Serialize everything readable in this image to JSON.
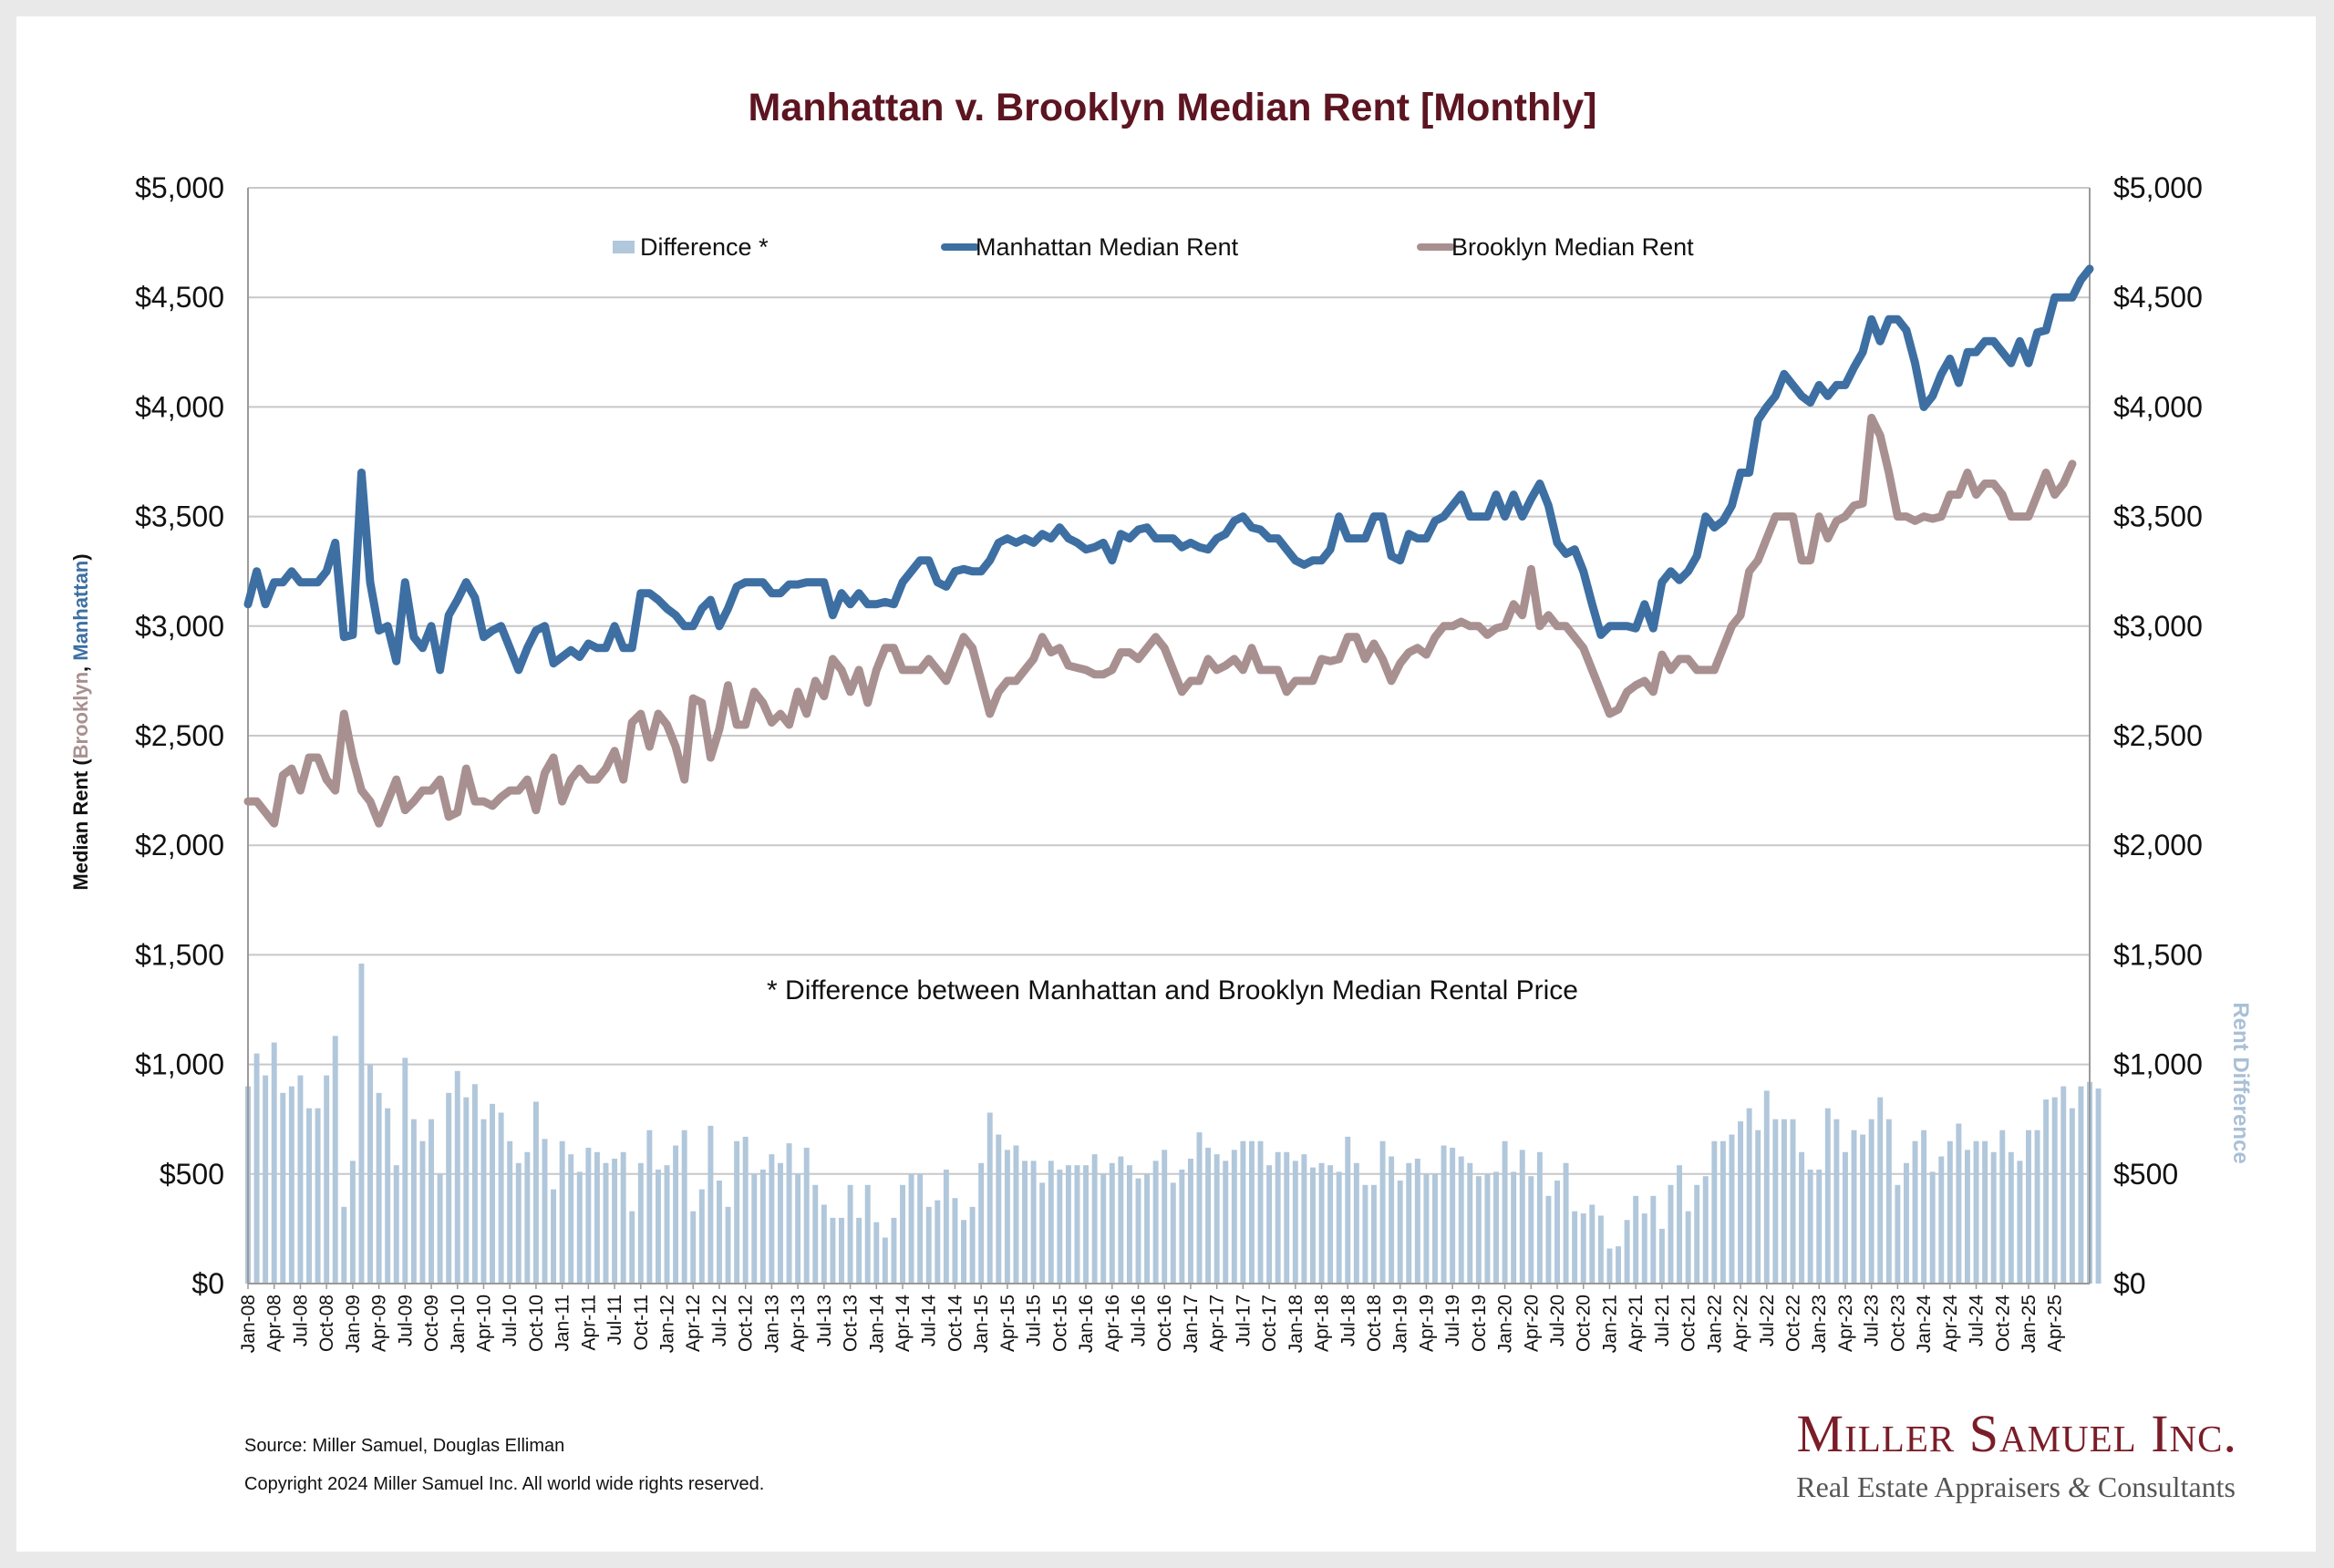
{
  "chart_data": {
    "type": "line",
    "title": "Manhattan v. Brooklyn Median Rent [Monthly]",
    "ylabel_left": {
      "prefix": "Median Rent (",
      "part1": "Brooklyn",
      "separator": ", ",
      "part2": "Manhattan",
      "suffix": ")"
    },
    "ylabel_right": "Rent Difference",
    "ylim": [
      0,
      5000
    ],
    "yticks": [
      "$0",
      "$500",
      "$1,000",
      "$1,500",
      "$2,000",
      "$2,500",
      "$3,000",
      "$3,500",
      "$4,000",
      "$4,500",
      "$5,000"
    ],
    "grid": true,
    "legend": {
      "position": "top",
      "entries": [
        "Difference *",
        "Manhattan Median Rent",
        "Brooklyn Median Rent"
      ]
    },
    "annotation": "* Difference between Manhattan and Brooklyn Median Rental Price",
    "x_range": [
      "Jan-08",
      "Jul-25"
    ],
    "x_tick_labels": [
      "Jan-08",
      "Apr-08",
      "Jul-08",
      "Oct-08",
      "Jan-09",
      "Apr-09",
      "Jul-09",
      "Oct-09",
      "Jan-10",
      "Apr-10",
      "Jul-10",
      "Oct-10",
      "Jan-11",
      "Apr-11",
      "Jul-11",
      "Oct-11",
      "Jan-12",
      "Apr-12",
      "Jul-12",
      "Oct-12",
      "Jan-13",
      "Apr-13",
      "Jul-13",
      "Oct-13",
      "Jan-14",
      "Apr-14",
      "Jul-14",
      "Oct-14",
      "Jan-15",
      "Apr-15",
      "Jul-15",
      "Oct-15",
      "Jan-16",
      "Apr-16",
      "Jul-16",
      "Oct-16",
      "Jan-17",
      "Apr-17",
      "Jul-17",
      "Oct-17",
      "Jan-18",
      "Apr-18",
      "Jul-18",
      "Oct-18",
      "Jan-19",
      "Apr-19",
      "Jul-19",
      "Oct-19",
      "Jan-20",
      "Apr-20",
      "Jul-20",
      "Oct-20",
      "Jan-21",
      "Apr-21",
      "Jul-21",
      "Oct-21",
      "Jan-22",
      "Apr-22",
      "Jul-22",
      "Oct-22",
      "Jan-23",
      "Apr-23",
      "Jul-23",
      "Oct-23",
      "Jan-24",
      "Apr-24",
      "Jul-24",
      "Oct-24",
      "Jan-25",
      "Apr-25"
    ],
    "colors": {
      "manhattan": "#3d6fa3",
      "brooklyn": "#a89091",
      "difference": "#b1c7db",
      "title": "#5c1521",
      "grid": "#c8c8c8",
      "rent_difference_label": "#a9c0d6"
    },
    "series": [
      {
        "name": "Manhattan Median Rent",
        "type": "line",
        "values": [
          3100,
          3250,
          3100,
          3200,
          3200,
          3250,
          3200,
          3200,
          3200,
          3250,
          3380,
          2950,
          2960,
          3700,
          3200,
          2980,
          3000,
          2840,
          3200,
          2950,
          2900,
          3000,
          2800,
          3050,
          3120,
          3200,
          3130,
          2950,
          2980,
          3000,
          2900,
          2800,
          2900,
          2980,
          3000,
          2830,
          2860,
          2890,
          2860,
          2920,
          2900,
          2900,
          3000,
          2900,
          2900,
          3150,
          3150,
          3120,
          3080,
          3050,
          3000,
          3000,
          3080,
          3120,
          3000,
          3080,
          3180,
          3200,
          3200,
          3200,
          3150,
          3150,
          3190,
          3190,
          3200,
          3200,
          3200,
          3050,
          3150,
          3100,
          3150,
          3100,
          3100,
          3110,
          3100,
          3200,
          3250,
          3300,
          3300,
          3200,
          3180,
          3250,
          3260,
          3250,
          3250,
          3300,
          3380,
          3400,
          3380,
          3400,
          3380,
          3420,
          3400,
          3450,
          3400,
          3380,
          3350,
          3360,
          3380,
          3300,
          3420,
          3400,
          3440,
          3450,
          3400,
          3400,
          3400,
          3360,
          3380,
          3360,
          3350,
          3400,
          3420,
          3480,
          3500,
          3450,
          3440,
          3400,
          3400,
          3350,
          3300,
          3280,
          3300,
          3300,
          3350,
          3500,
          3400,
          3400,
          3400,
          3500,
          3500,
          3320,
          3300,
          3420,
          3400,
          3400,
          3480,
          3500,
          3550,
          3600,
          3500,
          3500,
          3500,
          3600,
          3500,
          3600,
          3500,
          3580,
          3650,
          3550,
          3380,
          3330,
          3350,
          3250,
          3100,
          2960,
          3000,
          3000,
          3000,
          2990,
          3100,
          2990,
          3200,
          3250,
          3210,
          3250,
          3320,
          3500,
          3450,
          3480,
          3550,
          3700,
          3700,
          3940,
          4000,
          4050,
          4150,
          4100,
          4050,
          4020,
          4100,
          4050,
          4100,
          4100,
          4180,
          4250,
          4400,
          4300,
          4400,
          4400,
          4350,
          4200,
          4000,
          4050,
          4150,
          4220,
          4110,
          4250,
          4250,
          4300,
          4300,
          4250,
          4200,
          4300,
          4200,
          4340,
          4350,
          4500,
          4500,
          4500,
          4580,
          4630
        ]
      },
      {
        "name": "Brooklyn Median Rent",
        "type": "line",
        "values": [
          2200,
          2200,
          2150,
          2100,
          2320,
          2350,
          2250,
          2400,
          2400,
          2300,
          2250,
          2600,
          2400,
          2250,
          2200,
          2100,
          2200,
          2300,
          2160,
          2200,
          2250,
          2250,
          2300,
          2130,
          2150,
          2350,
          2200,
          2200,
          2180,
          2220,
          2250,
          2250,
          2300,
          2160,
          2330,
          2400,
          2200,
          2300,
          2350,
          2300,
          2300,
          2350,
          2430,
          2300,
          2560,
          2600,
          2450,
          2600,
          2550,
          2450,
          2300,
          2670,
          2650,
          2400,
          2530,
          2730,
          2550,
          2550,
          2700,
          2650,
          2560,
          2600,
          2550,
          2700,
          2600,
          2750,
          2680,
          2850,
          2800,
          2700,
          2800,
          2650,
          2800,
          2900,
          2900,
          2800,
          2800,
          2800,
          2850,
          2800,
          2750,
          2850,
          2950,
          2900,
          2750,
          2600,
          2700,
          2750,
          2750,
          2800,
          2850,
          2950,
          2880,
          2900,
          2820,
          2810,
          2800,
          2780,
          2780,
          2800,
          2880,
          2880,
          2850,
          2900,
          2950,
          2900,
          2800,
          2700,
          2750,
          2750,
          2850,
          2800,
          2820,
          2850,
          2800,
          2900,
          2800,
          2800,
          2800,
          2700,
          2750,
          2750,
          2750,
          2850,
          2840,
          2850,
          2950,
          2950,
          2850,
          2920,
          2850,
          2750,
          2830,
          2880,
          2900,
          2870,
          2950,
          3000,
          3000,
          3020,
          3000,
          3000,
          2960,
          2990,
          3000,
          3100,
          3050,
          3260,
          3000,
          3050,
          3000,
          3000,
          2950,
          2900,
          2800,
          2700,
          2600,
          2620,
          2700,
          2730,
          2750,
          2700,
          2870,
          2800,
          2850,
          2850,
          2800,
          2800,
          2800,
          2900,
          3000,
          3050,
          3250,
          3300,
          3400,
          3500,
          3500,
          3500,
          3300,
          3300,
          3500,
          3400,
          3480,
          3500,
          3550,
          3560,
          3950,
          3870,
          3700,
          3500,
          3500,
          3480,
          3500,
          3490,
          3500,
          3600,
          3600,
          3700,
          3600,
          3650,
          3650,
          3600,
          3500,
          3500,
          3500,
          3600,
          3700,
          3600,
          3650,
          3740
        ]
      },
      {
        "name": "Difference *",
        "type": "bar",
        "values": [
          900,
          1050,
          950,
          1100,
          870,
          900,
          950,
          800,
          800,
          950,
          1130,
          350,
          560,
          1460,
          1000,
          870,
          800,
          540,
          1030,
          750,
          650,
          750,
          500,
          870,
          970,
          850,
          910,
          750,
          820,
          780,
          650,
          550,
          600,
          830,
          660,
          430,
          650,
          590,
          510,
          620,
          600,
          550,
          570,
          600,
          330,
          550,
          700,
          520,
          540,
          630,
          700,
          330,
          430,
          720,
          470,
          350,
          650,
          670,
          500,
          520,
          590,
          550,
          640,
          500,
          620,
          450,
          360,
          300,
          300,
          450,
          300,
          450,
          280,
          210,
          300,
          450,
          500,
          500,
          350,
          380,
          520,
          390,
          290,
          350,
          550,
          780,
          680,
          610,
          630,
          560,
          560,
          460,
          560,
          520,
          540,
          540,
          540,
          590,
          500,
          550,
          580,
          540,
          480,
          500,
          560,
          610,
          460,
          520,
          570,
          690,
          620,
          590,
          560,
          610,
          650,
          650,
          650,
          540,
          600,
          600,
          560,
          590,
          530,
          550,
          540,
          510,
          670,
          550,
          450,
          450,
          650,
          580,
          470,
          550,
          570,
          500,
          500,
          630,
          620,
          580,
          550,
          490,
          500,
          510,
          650,
          510,
          610,
          490,
          600,
          400,
          470,
          550,
          330,
          320,
          360,
          310,
          160,
          170,
          290,
          400,
          320,
          400,
          250,
          450,
          540,
          330,
          450,
          490,
          650,
          650,
          680,
          740,
          800,
          700,
          880,
          750,
          750,
          750,
          600,
          520,
          520,
          800,
          750,
          600,
          700,
          680,
          750,
          850,
          750,
          450,
          550,
          650,
          700,
          510,
          580,
          650,
          730,
          610,
          650,
          650,
          600,
          700,
          600,
          560,
          700,
          700,
          840,
          850,
          900,
          800,
          900,
          920,
          890
        ]
      }
    ]
  },
  "footer": {
    "source": "Source: Miller Samuel, Douglas Elliman",
    "copyright": "Copyright 2024 Miller Samuel Inc.  All world wide rights reserved."
  },
  "logo": {
    "line1": "Miller Samuel Inc.",
    "line2_part1": "Real Estate Appraisers ",
    "line2_amp": "&",
    "line2_part2": " Consultants"
  }
}
